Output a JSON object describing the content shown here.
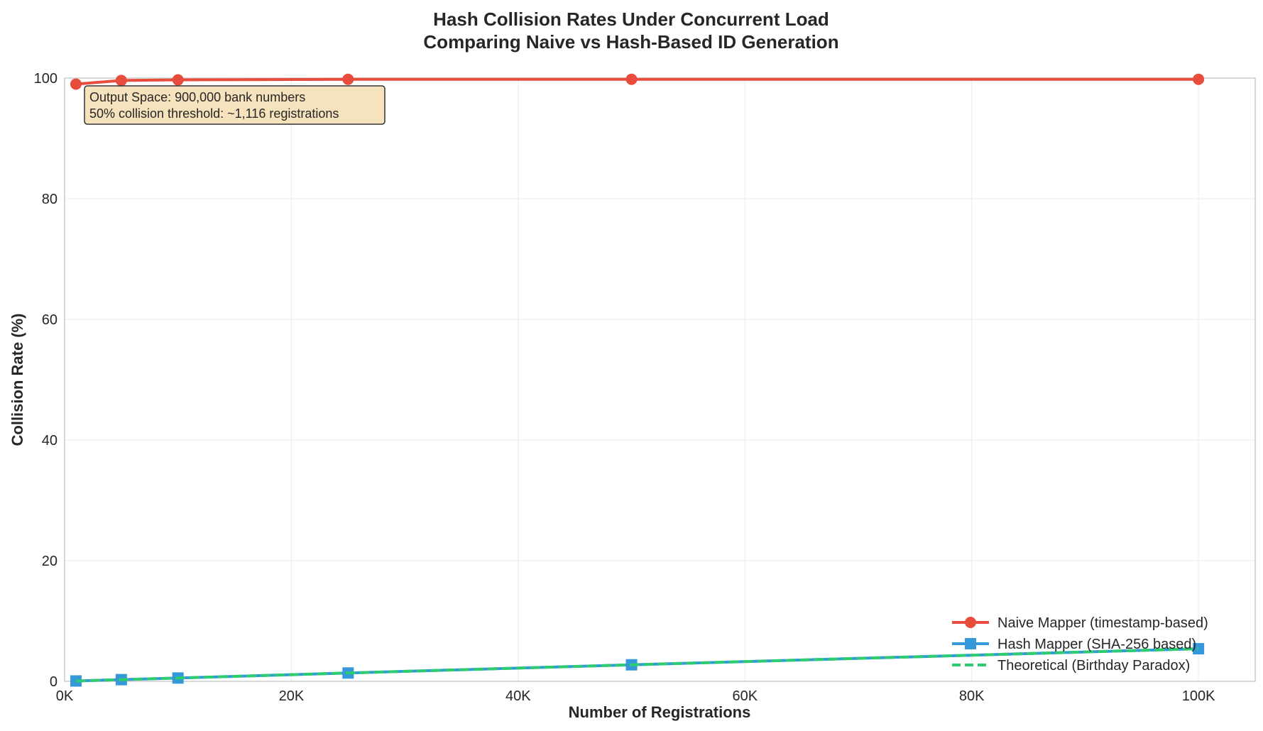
{
  "chart_data": {
    "type": "line",
    "title_line1": "Hash Collision Rates Under Concurrent Load",
    "title_line2": "Comparing Naive vs Hash-Based ID Generation",
    "xlabel": "Number of Registrations",
    "ylabel": "Collision Rate (%)",
    "xlim": [
      0,
      105000
    ],
    "ylim": [
      0,
      100
    ],
    "xticks": [
      0,
      20000,
      40000,
      60000,
      80000,
      100000
    ],
    "xtick_labels": [
      "0K",
      "20K",
      "40K",
      "60K",
      "80K",
      "100K"
    ],
    "yticks": [
      0,
      20,
      40,
      60,
      80,
      100
    ],
    "ytick_labels": [
      "0",
      "20",
      "40",
      "60",
      "80",
      "100"
    ],
    "grid": true,
    "legend_position": "lower-right",
    "x": [
      1000,
      5000,
      10000,
      25000,
      50000,
      100000
    ],
    "series": [
      {
        "name": "Naive Mapper (timestamp-based)",
        "color": "#e74c3c",
        "marker": "circle",
        "linestyle": "solid",
        "values": [
          99.0,
          99.6,
          99.7,
          99.8,
          99.8,
          99.8
        ]
      },
      {
        "name": "Hash Mapper (SHA-256 based)",
        "color": "#3498db",
        "marker": "square",
        "linestyle": "solid",
        "values": [
          0.06,
          0.28,
          0.55,
          1.38,
          2.74,
          5.4
        ]
      },
      {
        "name": "Theoretical (Birthday Paradox)",
        "color": "#2ecc71",
        "marker": "none",
        "linestyle": "dashed",
        "values": [
          0.06,
          0.28,
          0.55,
          1.38,
          2.74,
          5.4
        ]
      }
    ],
    "annotation_line1": "Output Space: 900,000 bank numbers",
    "annotation_line2": "50% collision threshold: ~1,116 registrations",
    "annotation_bg": "#f5deb3"
  }
}
